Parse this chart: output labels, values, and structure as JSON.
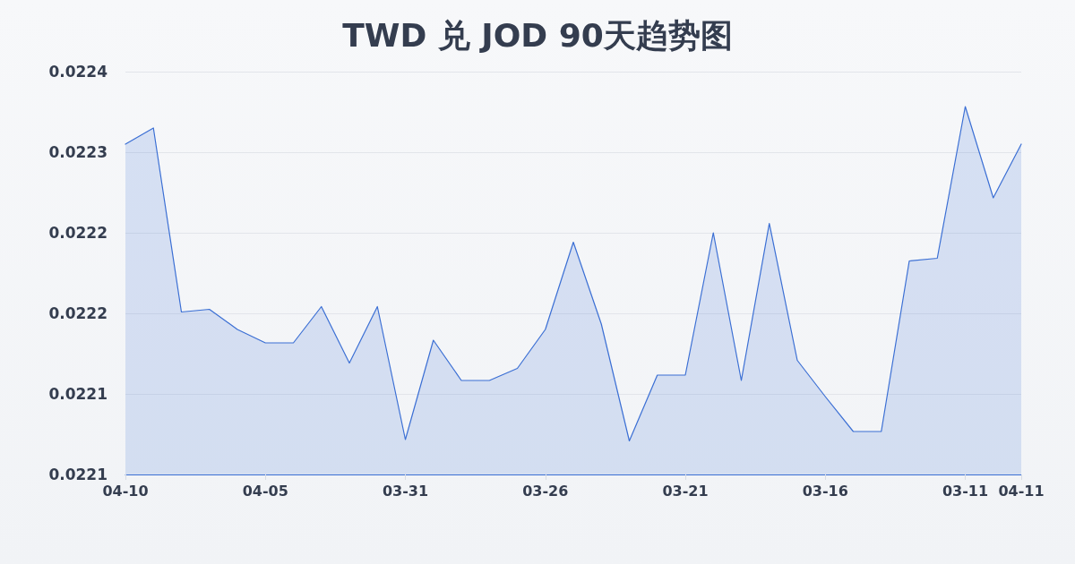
{
  "chart_data": {
    "type": "area",
    "title": "TWD 兑 JOD 90天趋势图",
    "categories": [
      "04-10",
      null,
      null,
      null,
      null,
      "04-05",
      null,
      null,
      null,
      null,
      "03-31",
      null,
      null,
      null,
      null,
      "03-26",
      null,
      null,
      null,
      null,
      "03-21",
      null,
      null,
      null,
      null,
      "03-16",
      null,
      null,
      null,
      null,
      "03-11",
      null,
      "04-11"
    ],
    "values": [
      0.022306,
      0.022318,
      0.022181,
      0.022183,
      0.022168,
      0.022158,
      0.022158,
      0.022185,
      0.022143,
      0.022185,
      0.022086,
      0.02216,
      0.02213,
      0.02213,
      0.022139,
      0.022168,
      0.022233,
      0.022172,
      0.022085,
      0.022134,
      0.022134,
      0.02224,
      0.02213,
      0.022247,
      0.022145,
      0.022118,
      0.022092,
      0.022092,
      0.022219,
      0.022221,
      0.022334,
      0.022266,
      0.022306
    ],
    "color": "#3b6fd4",
    "ylim": [
      0.02206,
      0.02236
    ],
    "yticks": [
      {
        "value": 0.02206,
        "label": "0.0221"
      },
      {
        "value": 0.02212,
        "label": "0.0221"
      },
      {
        "value": 0.02218,
        "label": "0.0222"
      },
      {
        "value": 0.02224,
        "label": "0.0222"
      },
      {
        "value": 0.0223,
        "label": "0.0223"
      },
      {
        "value": 0.02236,
        "label": "0.0224"
      }
    ],
    "grid": "y",
    "marker": "none",
    "line_style": "solid"
  }
}
